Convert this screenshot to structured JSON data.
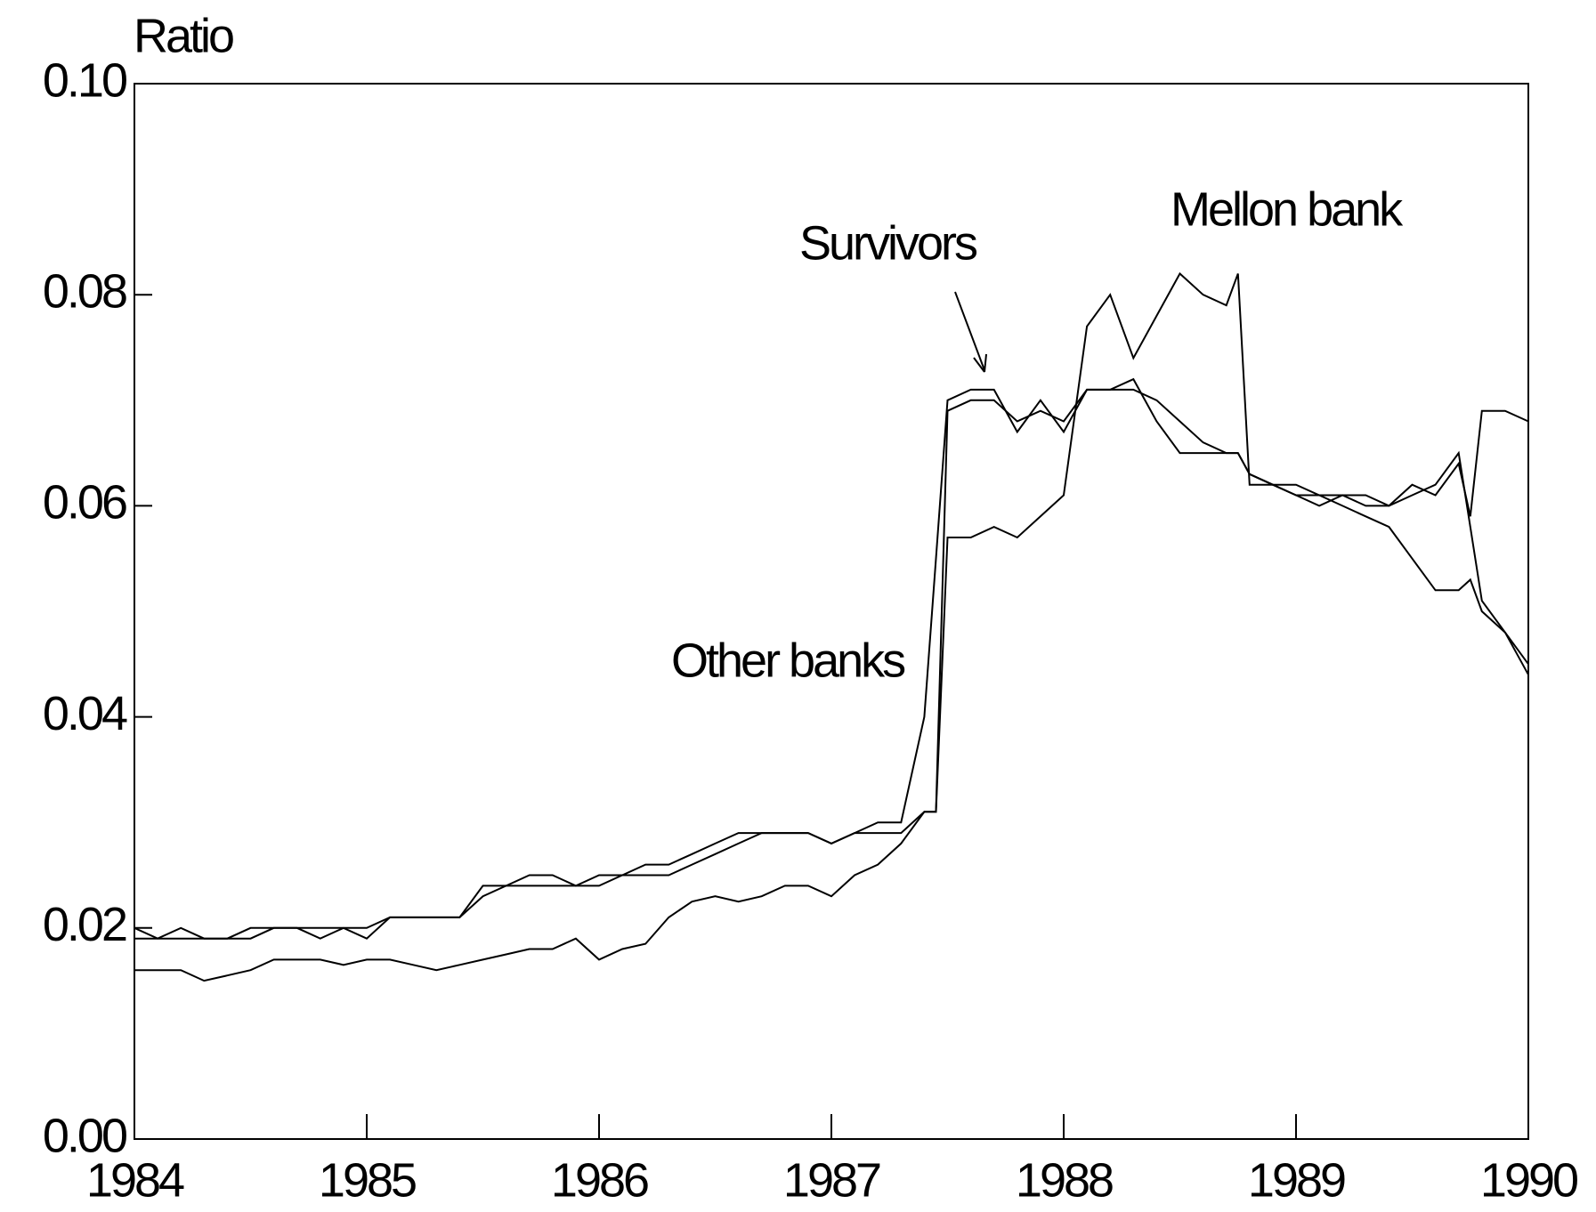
{
  "chart_data": {
    "type": "line",
    "y_label": "Ratio",
    "x": [
      1984.0,
      1984.1,
      1984.2,
      1984.3,
      1984.4,
      1984.5,
      1984.6,
      1984.7,
      1984.8,
      1984.9,
      1985.0,
      1985.1,
      1985.2,
      1985.3,
      1985.4,
      1985.5,
      1985.6,
      1985.7,
      1985.8,
      1985.9,
      1986.0,
      1986.1,
      1986.2,
      1986.3,
      1986.4,
      1986.5,
      1986.6,
      1986.7,
      1986.8,
      1986.9,
      1987.0,
      1987.1,
      1987.2,
      1987.3,
      1987.4,
      1987.45,
      1987.5,
      1987.6,
      1987.7,
      1987.8,
      1987.9,
      1988.0,
      1988.1,
      1988.2,
      1988.3,
      1988.4,
      1988.5,
      1988.6,
      1988.7,
      1988.75,
      1988.8,
      1988.9,
      1989.0,
      1989.1,
      1989.2,
      1989.3,
      1989.4,
      1989.5,
      1989.6,
      1989.7,
      1989.75,
      1989.8,
      1989.9,
      1990.0
    ],
    "series": [
      {
        "name": "Mellon bank",
        "color": "#000000",
        "values": [
          0.016,
          0.016,
          0.016,
          0.015,
          0.0155,
          0.016,
          0.017,
          0.017,
          0.017,
          0.0165,
          0.017,
          0.017,
          0.0165,
          0.016,
          0.0165,
          0.017,
          0.0175,
          0.018,
          0.018,
          0.019,
          0.017,
          0.018,
          0.0185,
          0.021,
          0.0225,
          0.023,
          0.0225,
          0.023,
          0.024,
          0.024,
          0.023,
          0.025,
          0.026,
          0.028,
          0.031,
          0.031,
          0.057,
          0.057,
          0.058,
          0.057,
          0.059,
          0.061,
          0.077,
          0.08,
          0.074,
          0.078,
          0.082,
          0.08,
          0.079,
          0.082,
          0.062,
          0.062,
          0.061,
          0.06,
          0.061,
          0.06,
          0.06,
          0.062,
          0.061,
          0.064,
          0.059,
          0.069,
          0.069,
          0.068
        ]
      },
      {
        "name": "Survivors",
        "color": "#000000",
        "values": [
          0.019,
          0.019,
          0.019,
          0.019,
          0.019,
          0.019,
          0.02,
          0.02,
          0.02,
          0.02,
          0.02,
          0.021,
          0.021,
          0.021,
          0.021,
          0.023,
          0.024,
          0.024,
          0.024,
          0.024,
          0.024,
          0.025,
          0.025,
          0.025,
          0.026,
          0.027,
          0.028,
          0.029,
          0.029,
          0.029,
          0.028,
          0.029,
          0.029,
          0.029,
          0.031,
          0.031,
          0.069,
          0.07,
          0.07,
          0.068,
          0.069,
          0.068,
          0.071,
          0.071,
          0.072,
          0.068,
          0.065,
          0.065,
          0.065,
          0.065,
          0.063,
          0.062,
          0.061,
          0.061,
          0.06,
          0.059,
          0.058,
          0.055,
          0.052,
          0.052,
          0.053,
          0.05,
          0.048,
          0.044
        ]
      },
      {
        "name": "Other banks",
        "color": "#000000",
        "values": [
          0.02,
          0.019,
          0.02,
          0.019,
          0.019,
          0.02,
          0.02,
          0.02,
          0.019,
          0.02,
          0.019,
          0.021,
          0.021,
          0.021,
          0.021,
          0.024,
          0.024,
          0.025,
          0.025,
          0.024,
          0.025,
          0.025,
          0.026,
          0.026,
          0.027,
          0.028,
          0.029,
          0.029,
          0.029,
          0.029,
          0.028,
          0.029,
          0.03,
          0.03,
          0.04,
          0.055,
          0.07,
          0.071,
          0.071,
          0.067,
          0.07,
          0.067,
          0.071,
          0.071,
          0.071,
          0.07,
          0.068,
          0.066,
          0.065,
          0.065,
          0.063,
          0.062,
          0.062,
          0.061,
          0.061,
          0.061,
          0.06,
          0.061,
          0.062,
          0.065,
          0.058,
          0.051,
          0.048,
          0.045
        ]
      }
    ],
    "xlim": [
      1984,
      1990
    ],
    "xticks": [
      1984,
      1985,
      1986,
      1987,
      1988,
      1989,
      1990
    ],
    "ylim": [
      0,
      0.1
    ],
    "yticks": [
      {
        "value": 0,
        "label": "0.00"
      },
      0.02,
      0.04,
      0.06,
      0.08,
      {
        "value": 0.1,
        "label": "0.10"
      }
    ],
    "grid": false
  }
}
